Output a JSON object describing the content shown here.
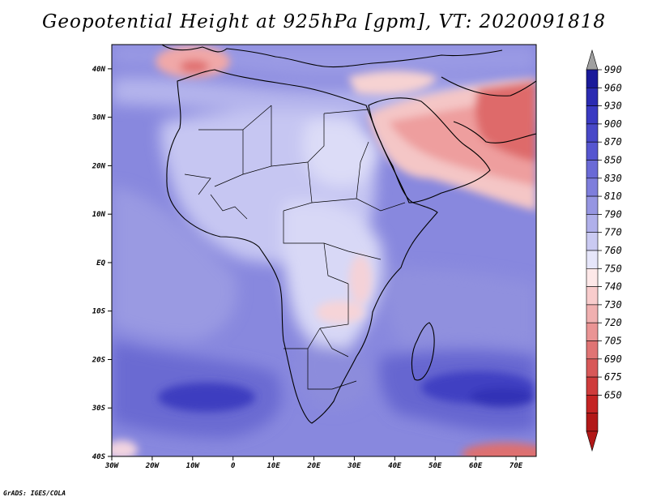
{
  "title": "Geopotential Height at 925hPa [gpm], VT: 2020091818",
  "map": {
    "variable": "Geopotential Height",
    "level": "925hPa",
    "units": "gpm",
    "valid_time": "2020091818",
    "lon_range": [
      -30,
      75
    ],
    "lat_range": [
      -40,
      45
    ],
    "x_ticks": [
      "30W",
      "20W",
      "10W",
      "0",
      "10E",
      "20E",
      "30E",
      "40E",
      "50E",
      "60E",
      "70E"
    ],
    "x_tick_values": [
      -30,
      -20,
      -10,
      0,
      10,
      20,
      30,
      40,
      50,
      60,
      70
    ],
    "y_ticks": [
      "40N",
      "30N",
      "20N",
      "10N",
      "EQ",
      "10S",
      "20S",
      "30S",
      "40S"
    ],
    "y_tick_values": [
      40,
      30,
      20,
      10,
      0,
      -10,
      -20,
      -30,
      -40
    ]
  },
  "colorbar": {
    "labels": [
      "990",
      "960",
      "930",
      "900",
      "870",
      "850",
      "830",
      "810",
      "790",
      "770",
      "760",
      "750",
      "740",
      "730",
      "720",
      "705",
      "690",
      "675",
      "650"
    ],
    "colors": [
      "#1a1a9a",
      "#2b2bb2",
      "#3a3ac2",
      "#4848c8",
      "#5656d0",
      "#6a6ad6",
      "#7e7edc",
      "#9696e2",
      "#b0b0ea",
      "#cacaf2",
      "#e6e6fa",
      "#fde8e8",
      "#f8cccc",
      "#f0b0b0",
      "#ea9494",
      "#e07474",
      "#d85858",
      "#cf3c3c",
      "#c42424",
      "#b21818"
    ],
    "arrow_top_color": "#a0a0a0",
    "arrow_bottom_color": "#b21818"
  },
  "credit": "GrADS: IGES/COLA"
}
